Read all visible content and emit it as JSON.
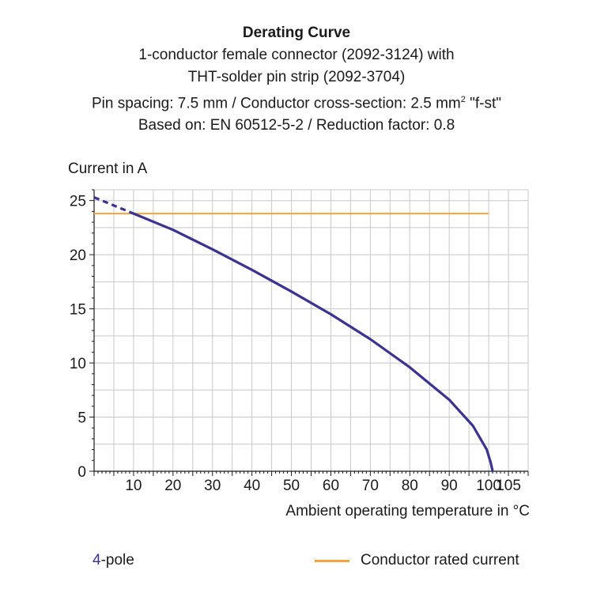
{
  "chart_data": {
    "type": "line",
    "title": "Derating Curve",
    "subtitle_lines": [
      "1-conductor female connector (2092-3124) with",
      "THT-solder pin strip (2092-3704)",
      "Pin spacing: 7.5 mm / Conductor cross-section: 2.5 mm",
      "Based on: EN 60512-5-2 / Reduction factor: 0.8"
    ],
    "subtitle_sup": "2",
    "subtitle_suffix": " \"f-st\"",
    "ylabel": "Current in A",
    "xlabel": "Ambient operating temperature in °C",
    "xlim": [
      0,
      110
    ],
    "ylim": [
      0,
      26
    ],
    "xticks": [
      10,
      20,
      30,
      40,
      50,
      60,
      70,
      80,
      90,
      100,
      105
    ],
    "yticks": [
      0,
      5,
      10,
      15,
      20,
      25
    ],
    "grid": true,
    "series": [
      {
        "name": "4-pole",
        "color": "#3a3391",
        "dashed_points": [
          [
            0,
            25.3
          ],
          [
            10,
            23.8
          ]
        ],
        "points": [
          [
            10,
            23.8
          ],
          [
            20,
            22.3
          ],
          [
            30,
            20.5
          ],
          [
            40,
            18.6
          ],
          [
            50,
            16.6
          ],
          [
            60,
            14.5
          ],
          [
            70,
            12.2
          ],
          [
            80,
            9.6
          ],
          [
            90,
            6.6
          ],
          [
            96,
            4.2
          ],
          [
            99.5,
            2.0
          ],
          [
            100.5,
            0.8
          ],
          [
            101,
            0
          ]
        ]
      },
      {
        "name": "Conductor rated current",
        "color": "#f5a43a",
        "points": [
          [
            0,
            23.8
          ],
          [
            100,
            23.8
          ]
        ]
      }
    ],
    "legend": {
      "left_num": "4",
      "left_text": "-pole",
      "right_text": "Conductor rated current"
    }
  }
}
